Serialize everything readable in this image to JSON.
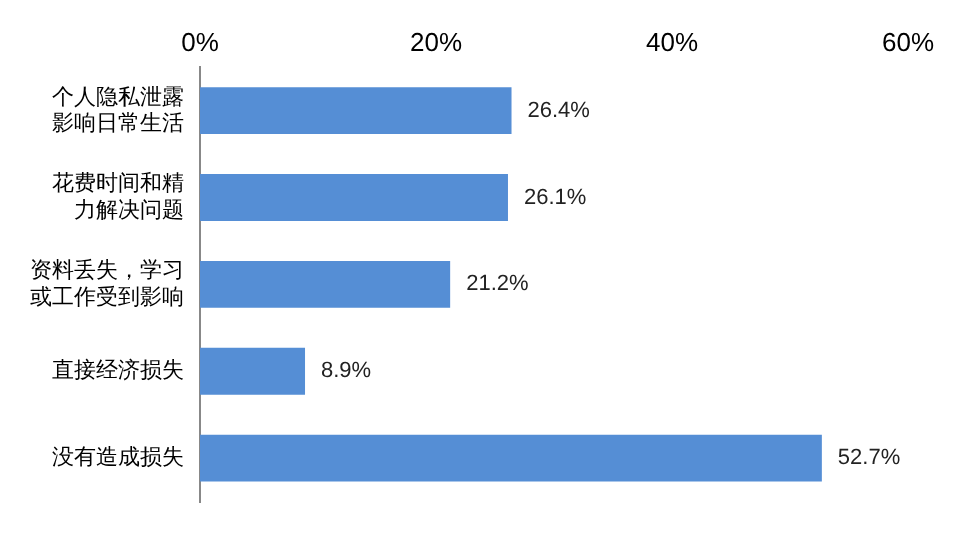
{
  "chart_data": {
    "type": "bar",
    "orientation": "horizontal",
    "categories": [
      "个人隐私泄露影响日常生活",
      "花费时间和精力解决问题",
      "资料丢失，学习或工作受到影响",
      "直接经济损失",
      "没有造成损失"
    ],
    "values": [
      26.4,
      26.1,
      21.2,
      8.9,
      52.7
    ],
    "value_labels": [
      "26.4%",
      "26.1%",
      "21.2%",
      "8.9%",
      "52.7%"
    ],
    "color": "#558ed5",
    "xlim": [
      0,
      60
    ],
    "xticks": [
      {
        "value": 0,
        "label": "0%"
      },
      {
        "value": 20,
        "label": "20%"
      },
      {
        "value": 40,
        "label": "40%"
      },
      {
        "value": 60,
        "label": "60%"
      }
    ],
    "grid": false,
    "legend": false
  }
}
